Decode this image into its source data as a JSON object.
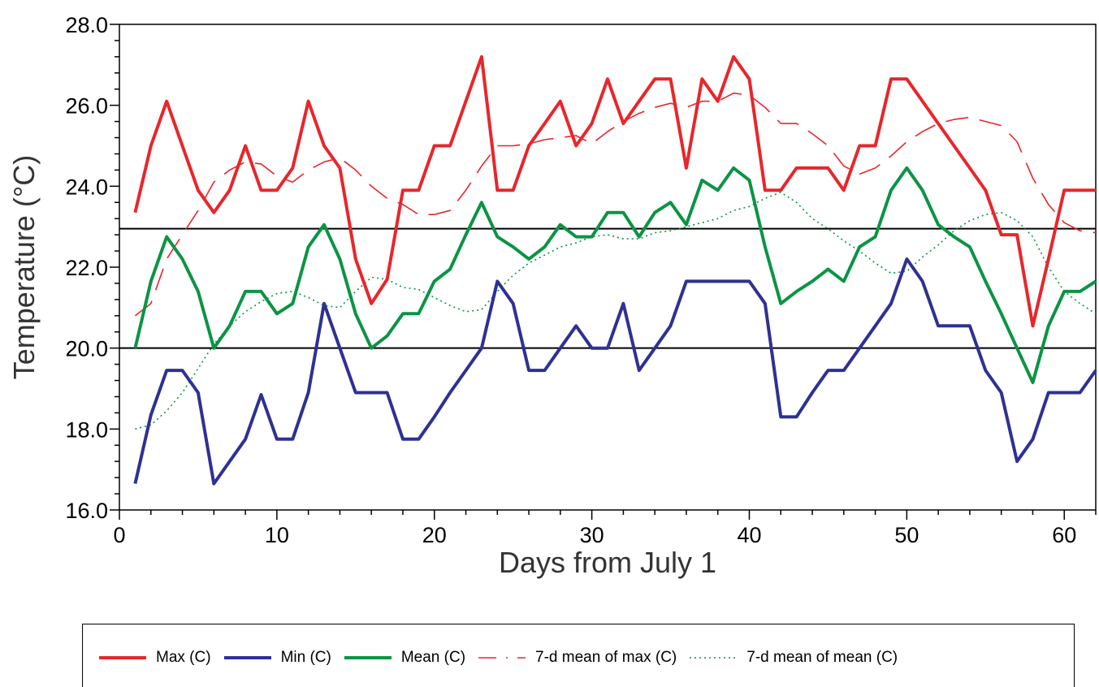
{
  "chart_data": {
    "type": "line",
    "xlabel": "Days from July 1",
    "ylabel": "Temperature (°C)",
    "xlim": [
      0,
      62
    ],
    "ylim": [
      16,
      28
    ],
    "x_ticks": [
      0,
      10,
      20,
      30,
      40,
      50,
      60
    ],
    "y_ticks": [
      "16.0",
      "18.0",
      "20.0",
      "22.0",
      "24.0",
      "26.0",
      "28.0"
    ],
    "reference_lines_y": [
      20.0,
      22.95
    ],
    "legend_position": "bottom",
    "series": [
      {
        "name": "Max (C)",
        "style": "solid",
        "color": "#e8262b",
        "x": [
          1,
          2,
          3,
          4,
          5,
          6,
          7,
          8,
          9,
          10,
          11,
          12,
          13,
          14,
          15,
          16,
          17,
          18,
          19,
          20,
          21,
          22,
          23,
          24,
          25,
          26,
          27,
          28,
          29,
          30,
          31,
          32,
          33,
          34,
          35,
          36,
          37,
          38,
          39,
          40,
          41,
          42,
          43,
          44,
          45,
          46,
          47,
          48,
          49,
          50,
          51,
          52,
          53,
          54,
          55,
          56,
          57,
          58,
          59,
          60,
          61,
          62
        ],
        "values": [
          23.35,
          25.0,
          26.1,
          25.0,
          23.9,
          23.35,
          23.9,
          25.0,
          23.9,
          23.9,
          24.45,
          26.1,
          25.0,
          24.45,
          22.2,
          21.1,
          21.7,
          23.9,
          23.9,
          25.0,
          25.0,
          26.1,
          27.2,
          23.9,
          23.9,
          25.0,
          25.55,
          26.1,
          25.0,
          25.55,
          26.65,
          25.55,
          26.1,
          26.65,
          26.65,
          24.45,
          26.65,
          26.1,
          27.2,
          26.65,
          23.9,
          23.9,
          24.45,
          24.45,
          24.45,
          23.9,
          25.0,
          25.0,
          26.65,
          26.65,
          26.1,
          25.55,
          25.0,
          24.45,
          23.9,
          22.8,
          22.8,
          20.55,
          22.2,
          23.9,
          23.9,
          23.9
        ]
      },
      {
        "name": "Min (C)",
        "style": "solid",
        "color": "#2e3192",
        "x": [
          1,
          2,
          3,
          4,
          5,
          6,
          7,
          8,
          9,
          10,
          11,
          12,
          13,
          14,
          15,
          16,
          17,
          18,
          19,
          20,
          21,
          22,
          23,
          24,
          25,
          26,
          27,
          28,
          29,
          30,
          31,
          32,
          33,
          34,
          35,
          36,
          37,
          38,
          39,
          40,
          41,
          42,
          43,
          44,
          45,
          46,
          47,
          48,
          49,
          50,
          51,
          52,
          53,
          54,
          55,
          56,
          57,
          58,
          59,
          60,
          61,
          62
        ],
        "values": [
          16.65,
          18.35,
          19.45,
          19.45,
          18.9,
          16.65,
          17.2,
          17.75,
          18.85,
          17.75,
          17.75,
          18.9,
          21.1,
          20.0,
          18.9,
          18.9,
          18.9,
          17.75,
          17.75,
          18.3,
          18.9,
          19.45,
          20.0,
          21.65,
          21.1,
          19.45,
          19.45,
          20.0,
          20.55,
          20.0,
          20.0,
          21.1,
          19.45,
          20.0,
          20.55,
          21.65,
          21.65,
          21.65,
          21.65,
          21.65,
          21.1,
          18.3,
          18.3,
          18.9,
          19.45,
          19.45,
          20.0,
          20.55,
          21.1,
          22.2,
          21.65,
          20.55,
          20.55,
          20.55,
          19.45,
          18.9,
          17.2,
          17.75,
          18.9,
          18.9,
          18.9,
          19.45
        ]
      },
      {
        "name": "Mean (C)",
        "style": "solid",
        "color": "#0b9444",
        "x": [
          1,
          2,
          3,
          4,
          5,
          6,
          7,
          8,
          9,
          10,
          11,
          12,
          13,
          14,
          15,
          16,
          17,
          18,
          19,
          20,
          21,
          22,
          23,
          24,
          25,
          26,
          27,
          28,
          29,
          30,
          31,
          32,
          33,
          34,
          35,
          36,
          37,
          38,
          39,
          40,
          41,
          42,
          43,
          44,
          45,
          46,
          47,
          48,
          49,
          50,
          51,
          52,
          53,
          54,
          55,
          56,
          57,
          58,
          59,
          60,
          61,
          62
        ],
        "values": [
          20.0,
          21.65,
          22.75,
          22.2,
          21.4,
          20.0,
          20.55,
          21.4,
          21.4,
          20.85,
          21.1,
          22.5,
          23.05,
          22.2,
          20.85,
          20.0,
          20.3,
          20.85,
          20.85,
          21.65,
          21.95,
          22.8,
          23.6,
          22.75,
          22.5,
          22.2,
          22.5,
          23.05,
          22.75,
          22.75,
          23.35,
          23.35,
          22.75,
          23.35,
          23.6,
          23.05,
          24.15,
          23.9,
          24.45,
          24.15,
          22.5,
          21.1,
          21.4,
          21.65,
          21.95,
          21.65,
          22.5,
          22.75,
          23.9,
          24.45,
          23.9,
          23.05,
          22.75,
          22.5,
          21.65,
          20.85,
          20.0,
          19.15,
          20.55,
          21.4,
          21.4,
          21.65
        ]
      },
      {
        "name": "7-d mean of max (C)",
        "style": "dashed",
        "color": "#e8262b",
        "x": [
          1,
          2,
          3,
          4,
          5,
          6,
          7,
          8,
          9,
          10,
          11,
          12,
          13,
          14,
          15,
          16,
          17,
          18,
          19,
          20,
          21,
          22,
          23,
          24,
          25,
          26,
          27,
          28,
          29,
          30,
          31,
          32,
          33,
          34,
          35,
          36,
          37,
          38,
          39,
          40,
          41,
          42,
          43,
          44,
          45,
          46,
          47,
          48,
          49,
          50,
          51,
          52,
          53,
          54,
          55,
          56,
          57,
          58,
          59,
          60,
          61,
          62
        ],
        "values": [
          20.8,
          21.1,
          22.2,
          22.8,
          23.4,
          24.1,
          24.4,
          24.6,
          24.55,
          24.25,
          24.1,
          24.4,
          24.6,
          24.7,
          24.4,
          24.0,
          23.7,
          23.55,
          23.3,
          23.3,
          23.4,
          23.9,
          24.5,
          25.0,
          25.0,
          25.05,
          25.15,
          25.2,
          25.25,
          25.05,
          25.35,
          25.6,
          25.8,
          25.95,
          26.05,
          25.95,
          26.1,
          26.1,
          26.3,
          26.25,
          25.95,
          25.55,
          25.55,
          25.3,
          25.0,
          24.5,
          24.3,
          24.45,
          24.75,
          25.1,
          25.35,
          25.55,
          25.65,
          25.7,
          25.6,
          25.5,
          25.1,
          24.2,
          23.55,
          23.1,
          22.9,
          22.85
        ]
      },
      {
        "name": "7-d mean of mean (C)",
        "style": "dotted",
        "color": "#0b9444",
        "x": [
          1,
          2,
          3,
          4,
          5,
          6,
          7,
          8,
          9,
          10,
          11,
          12,
          13,
          14,
          15,
          16,
          17,
          18,
          19,
          20,
          21,
          22,
          23,
          24,
          25,
          26,
          27,
          28,
          29,
          30,
          31,
          32,
          33,
          34,
          35,
          36,
          37,
          38,
          39,
          40,
          41,
          42,
          43,
          44,
          45,
          46,
          47,
          48,
          49,
          50,
          51,
          52,
          53,
          54,
          55,
          56,
          57,
          58,
          59,
          60,
          61,
          62
        ],
        "values": [
          18.0,
          18.1,
          18.45,
          18.9,
          19.5,
          20.1,
          20.55,
          20.9,
          21.15,
          21.35,
          21.4,
          21.25,
          21.05,
          21.0,
          21.4,
          21.75,
          21.7,
          21.5,
          21.45,
          21.25,
          21.05,
          20.9,
          20.95,
          21.4,
          21.8,
          22.1,
          22.3,
          22.5,
          22.6,
          22.75,
          22.8,
          22.7,
          22.7,
          22.85,
          22.9,
          23.0,
          23.1,
          23.2,
          23.4,
          23.5,
          23.7,
          23.85,
          23.6,
          23.2,
          22.95,
          22.65,
          22.4,
          22.1,
          21.85,
          21.9,
          22.25,
          22.55,
          22.9,
          23.15,
          23.3,
          23.35,
          23.15,
          22.75,
          22.0,
          21.4,
          21.1,
          20.85
        ]
      }
    ]
  }
}
